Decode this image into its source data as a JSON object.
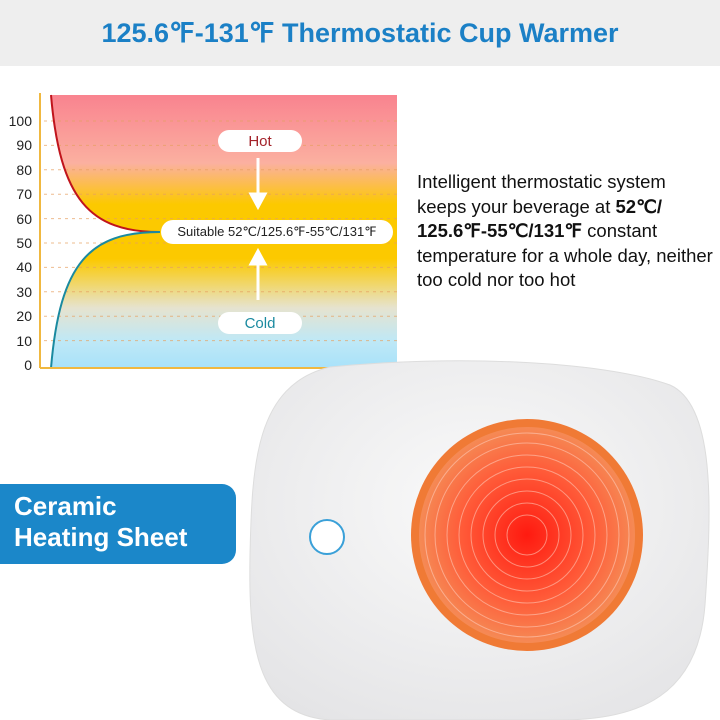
{
  "header": {
    "title": "125.6℉-131℉ Thermostatic Cup Warmer"
  },
  "chart": {
    "y_ticks": [
      "0",
      "10",
      "20",
      "30",
      "40",
      "50",
      "60",
      "70",
      "80",
      "90",
      "100"
    ],
    "hot_label": "Hot",
    "cold_label": "Cold",
    "suitable_label": "Suitable 52℃/125.6℉-55℃/131℉",
    "colors": {
      "hot_curve": "#c0141c",
      "cold_curve": "#1a8aa0",
      "hot_text": "#a3222a",
      "cold_text": "#1a8aa0"
    }
  },
  "description": {
    "line1": "Intelligent thermostatic system keeps your beverage at ",
    "bold": "52℃/ 125.6℉-55℃/131℉",
    "line2": " constant temperature for a whole day, neither too cold nor too hot"
  },
  "feature_label": {
    "line1": "Ceramic",
    "line2": "Heating Sheet",
    "color": "#1b87c9"
  }
}
